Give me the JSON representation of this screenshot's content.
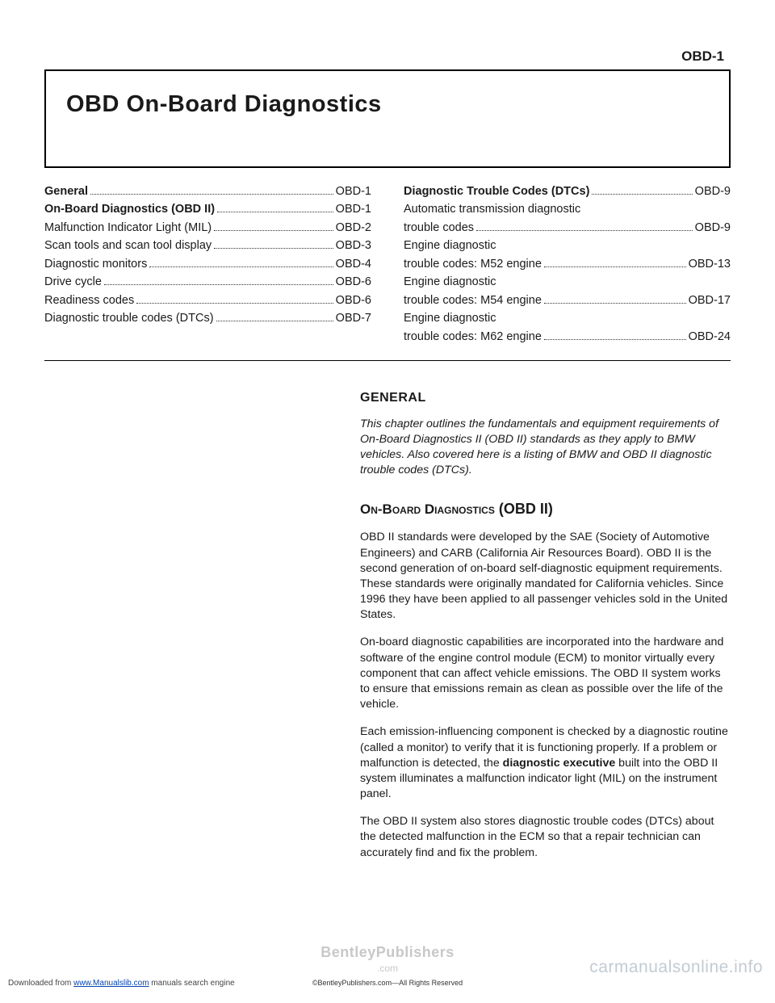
{
  "page_header": "OBD-1",
  "title": "OBD On-Board Diagnostics",
  "toc_left": [
    {
      "label": "General",
      "page": "OBD-1",
      "bold": true
    },
    {
      "label": "On-Board Diagnostics (OBD II)",
      "page": "OBD-1",
      "bold": true
    },
    {
      "label": "Malfunction Indicator Light (MIL)",
      "page": "OBD-2",
      "bold": false
    },
    {
      "label": "Scan tools and scan tool display",
      "page": "OBD-3",
      "bold": false
    },
    {
      "label": "Diagnostic monitors",
      "page": "OBD-4",
      "bold": false
    },
    {
      "label": "Drive cycle",
      "page": "OBD-6",
      "bold": false
    },
    {
      "label": "Readiness codes",
      "page": "OBD-6",
      "bold": false
    },
    {
      "label": "Diagnostic trouble codes (DTCs)",
      "page": "OBD-7",
      "bold": false
    }
  ],
  "toc_right": [
    {
      "label": "Diagnostic Trouble Codes (DTCs)",
      "page": "OBD-9",
      "bold": true,
      "wrap": false
    },
    {
      "label": "Automatic transmission diagnostic trouble codes",
      "page": "OBD-9",
      "bold": false,
      "wrap": true
    },
    {
      "label": "Engine diagnostic trouble codes: M52 engine",
      "page": "OBD-13",
      "bold": false,
      "wrap": true
    },
    {
      "label": "Engine diagnostic trouble codes: M54 engine",
      "page": "OBD-17",
      "bold": false,
      "wrap": true
    },
    {
      "label": "Engine diagnostic trouble codes: M62 engine",
      "page": "OBD-24",
      "bold": false,
      "wrap": true
    }
  ],
  "sections": {
    "general_head": "GENERAL",
    "general_p1": "This chapter outlines the fundamentals and equipment requirements of On-Board Diagnostics II (OBD II) standards as they apply to BMW vehicles. Also covered here is a listing of BMW and OBD II diagnostic trouble codes (DTCs).",
    "obd_head_sc": "On-Board Diagnostics",
    "obd_head_bold": " (OBD II)",
    "obd_p1": "OBD II standards were developed by the SAE (Society of Automotive Engineers) and CARB (California Air Resources Board). OBD II is the second generation of on-board self-diagnostic equipment requirements. These standards were originally mandated for California vehicles. Since 1996 they have been applied to all passenger vehicles sold in the United States.",
    "obd_p2": "On-board diagnostic capabilities are incorporated into the hardware and software of the engine control module (ECM) to monitor virtually every component that can affect vehicle emissions. The OBD II system works to ensure that emissions remain as clean as possible over the life of the vehicle.",
    "obd_p3_a": "Each emission-influencing component is checked by a diagnostic routine (called a monitor) to verify that it is functioning properly. If a problem or malfunction is detected, the ",
    "obd_p3_bold": "diagnostic executive",
    "obd_p3_b": " built into the OBD II system illuminates a malfunction indicator light (MIL) on the instrument panel.",
    "obd_p4": "The OBD II system also stores diagnostic trouble codes (DTCs) about the detected malfunction in the ECM so that a repair technician can accurately find and fix the problem."
  },
  "footer": {
    "watermark_pub": "BentleyPublishers",
    "watermark_sub": ".com",
    "dl_prefix": "Downloaded from ",
    "dl_link": "www.Manualslib.com",
    "dl_suffix": " manuals search engine",
    "copyright": "©BentleyPublishers.com—All Rights Reserved",
    "site_wm": "carmanualsonline.info"
  }
}
